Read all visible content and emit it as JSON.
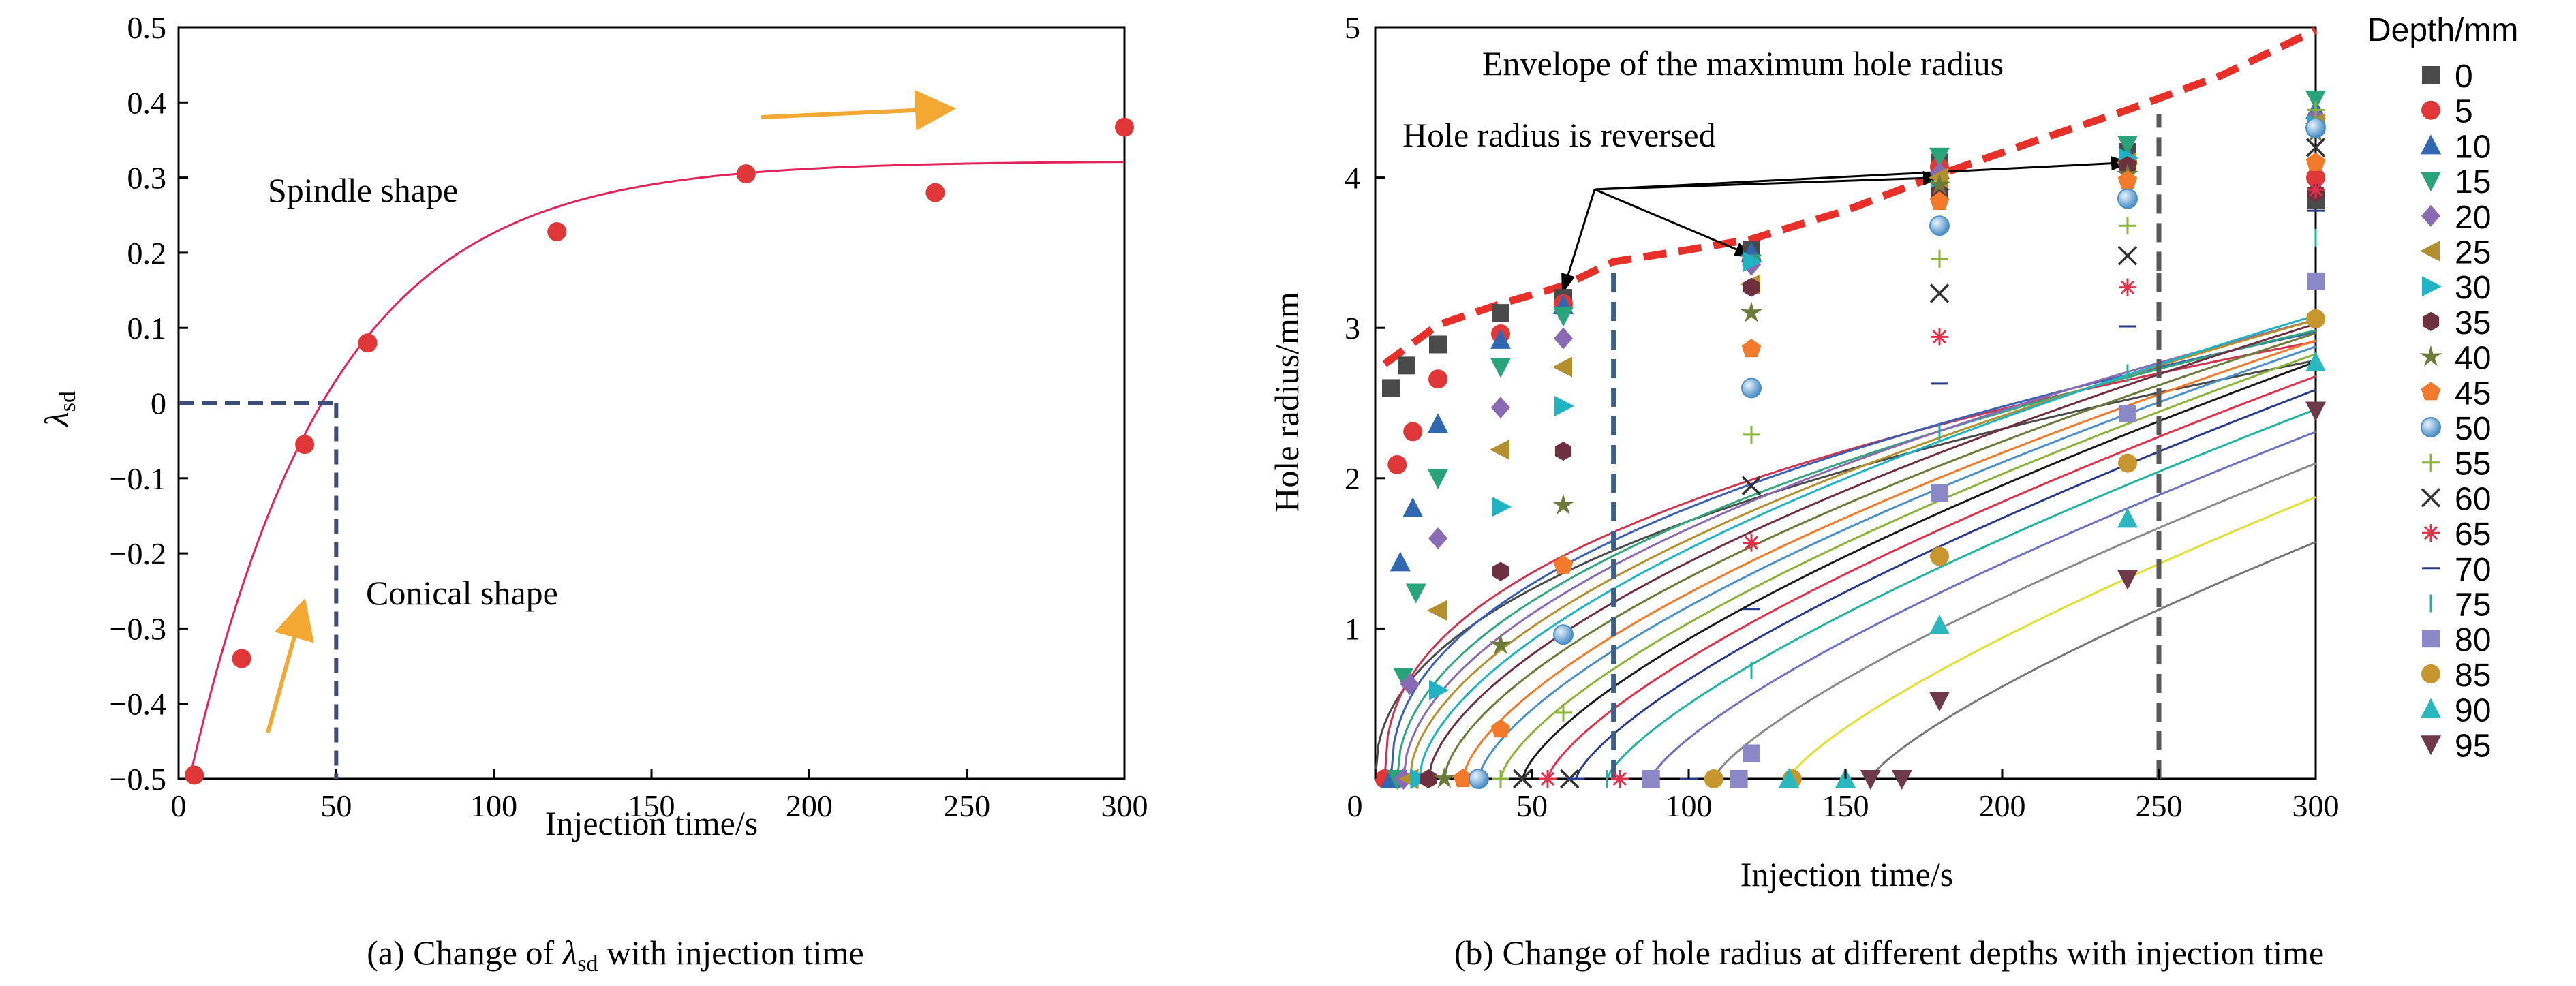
{
  "chart_data": [
    {
      "type": "scatter",
      "title": "",
      "caption_prefix": "(a) Change of ",
      "caption_symbol": "λ",
      "caption_subscript": "sd",
      "caption_suffix": " with injection time",
      "xlabel": "Injection time/s",
      "ylabel_symbol": "λ",
      "ylabel_subscript": "sd",
      "xlim": [
        0,
        300
      ],
      "ylim": [
        -0.5,
        0.5
      ],
      "xticks": [
        0,
        50,
        100,
        150,
        200,
        250,
        300
      ],
      "yticks": [
        0.5,
        0.4,
        0.3,
        0.2,
        0.1,
        0,
        -0.1,
        -0.2,
        -0.3,
        -0.4,
        -0.5
      ],
      "ytick_labels": [
        "0.5",
        "0.4",
        "0.3",
        "0.2",
        "0.1",
        "0",
        "−0.1",
        "−0.2",
        "−0.3",
        "−0.4",
        "−0.5"
      ],
      "points": [
        {
          "x": 5,
          "y": -0.495
        },
        {
          "x": 20,
          "y": -0.34
        },
        {
          "x": 40,
          "y": -0.055
        },
        {
          "x": 60,
          "y": 0.08
        },
        {
          "x": 120,
          "y": 0.228
        },
        {
          "x": 180,
          "y": 0.305
        },
        {
          "x": 240,
          "y": 0.28
        },
        {
          "x": 300,
          "y": 0.367
        }
      ],
      "fit_curve": {
        "a": 0.322,
        "b": 0.888,
        "k": 0.0223
      },
      "reference_point": {
        "x": 50,
        "y": 0
      },
      "annotations": {
        "spindle": "Spindle shape",
        "conical": "Conical shape"
      },
      "colors": {
        "points": "#e03838",
        "curve": "#e0245a",
        "dash": "#3c4d78",
        "arrow": "#f2a833"
      }
    },
    {
      "type": "line",
      "title": "",
      "caption": "(b) Change of hole radius at different depths with injection time",
      "xlabel": "Injection time/s",
      "ylabel": "Hole radius/mm",
      "xlim": [
        0,
        300
      ],
      "ylim": [
        0,
        5
      ],
      "xticks": [
        0,
        50,
        100,
        150,
        200,
        250,
        300
      ],
      "yticks": [
        1,
        2,
        3,
        4,
        5
      ],
      "legend_title": "Depth/mm",
      "legend_position": "right",
      "annotations": {
        "envelope": "Envelope of the maximum hole radius",
        "reversed": "Hole radius is reversed"
      },
      "vertical_refs": [
        {
          "x": 76,
          "color": "#3d5f86"
        },
        {
          "x": 250,
          "color": "#5a5a5a"
        }
      ],
      "envelope": {
        "x": [
          3,
          20,
          40,
          60,
          76,
          100,
          120,
          150,
          180,
          210,
          240,
          270,
          300
        ],
        "y": [
          2.76,
          3.02,
          3.16,
          3.28,
          3.44,
          3.52,
          3.59,
          3.78,
          4.02,
          4.24,
          4.45,
          4.68,
          4.98
        ],
        "color": "#e8302a"
      },
      "series": [
        {
          "name": "0",
          "marker": "square",
          "color": "#4a4a4a",
          "curve": "#4a4a4a",
          "t0": 0,
          "A": 0.225,
          "m": 0.441,
          "points": [
            [
              5,
              2.6
            ],
            [
              10,
              2.75
            ],
            [
              20,
              2.89
            ],
            [
              40,
              3.1
            ],
            [
              60,
              3.2
            ],
            [
              120,
              3.52
            ],
            [
              180,
              4.1
            ],
            [
              240,
              4.17
            ],
            [
              300,
              3.85
            ]
          ]
        },
        {
          "name": "5",
          "marker": "circle",
          "color": "#e03838",
          "curve": "#cf3550",
          "t0": 3,
          "A": 0.285,
          "m": 0.408,
          "points": [
            [
              3,
              0
            ],
            [
              7,
              2.09
            ],
            [
              12,
              2.31
            ],
            [
              20,
              2.66
            ],
            [
              40,
              2.96
            ],
            [
              60,
              3.16
            ],
            [
              120,
              3.45
            ],
            [
              180,
              4.07
            ],
            [
              240,
              4.1
            ],
            [
              300,
              4.0
            ]
          ]
        },
        {
          "name": "10",
          "marker": "triangle-up",
          "color": "#2f67b1",
          "curve": "#3a5fb3",
          "t0": 5,
          "A": 0.242,
          "m": 0.441,
          "points": [
            [
              5,
              0
            ],
            [
              8,
              1.44
            ],
            [
              12,
              1.8
            ],
            [
              20,
              2.36
            ],
            [
              40,
              2.92
            ],
            [
              60,
              3.15
            ],
            [
              120,
              3.5
            ],
            [
              180,
              4.05
            ],
            [
              240,
              4.15
            ],
            [
              300,
              4.45
            ]
          ]
        },
        {
          "name": "15",
          "marker": "triangle-down",
          "color": "#29a37a",
          "curve": "#34a77c",
          "t0": 7,
          "A": 0.192,
          "m": 0.483,
          "points": [
            [
              7,
              0
            ],
            [
              9,
              0.68
            ],
            [
              13,
              1.24
            ],
            [
              20,
              2.0
            ],
            [
              40,
              2.74
            ],
            [
              60,
              3.08
            ],
            [
              120,
              3.43
            ],
            [
              180,
              4.14
            ],
            [
              240,
              4.22
            ],
            [
              300,
              4.52
            ]
          ]
        },
        {
          "name": "20",
          "marker": "diamond",
          "color": "#8a6bb3",
          "curve": "#8a6bb3",
          "t0": 9,
          "A": 0.158,
          "m": 0.522,
          "points": [
            [
              9,
              0
            ],
            [
              11,
              0.63
            ],
            [
              20,
              1.6
            ],
            [
              40,
              2.47
            ],
            [
              60,
              2.93
            ],
            [
              120,
              3.42
            ],
            [
              180,
              4.03
            ],
            [
              240,
              4.05
            ],
            [
              300,
              4.4
            ]
          ]
        },
        {
          "name": "25",
          "marker": "triangle-left",
          "color": "#b38f2e",
          "curve": "#b38f2e",
          "t0": 11,
          "A": 0.133,
          "m": 0.553,
          "points": [
            [
              11,
              0
            ],
            [
              20,
              1.12
            ],
            [
              40,
              2.19
            ],
            [
              60,
              2.74
            ],
            [
              120,
              3.29
            ],
            [
              180,
              4.0
            ],
            [
              240,
              4.1
            ],
            [
              300,
              4.36
            ]
          ]
        },
        {
          "name": "30",
          "marker": "triangle-right",
          "color": "#1fb3c4",
          "curve": "#1fb3c4",
          "t0": 14,
          "A": 0.114,
          "m": 0.583,
          "points": [
            [
              14,
              0
            ],
            [
              20,
              0.59
            ],
            [
              40,
              1.81
            ],
            [
              60,
              2.48
            ],
            [
              120,
              3.44
            ],
            [
              180,
              3.92
            ],
            [
              240,
              4.13
            ],
            [
              300,
              4.35
            ]
          ]
        },
        {
          "name": "35",
          "marker": "hexagon",
          "color": "#6e2f40",
          "curve": "#6e2f40",
          "t0": 17,
          "A": 0.1,
          "m": 0.604,
          "points": [
            [
              17,
              0
            ],
            [
              40,
              1.38
            ],
            [
              60,
              2.18
            ],
            [
              120,
              3.27
            ],
            [
              180,
              3.9
            ],
            [
              240,
              4.08
            ],
            [
              300,
              3.9
            ]
          ]
        },
        {
          "name": "40",
          "marker": "star",
          "color": "#6b7b3a",
          "curve": "#6b7b3a",
          "t0": 22,
          "A": 0.088,
          "m": 0.625,
          "points": [
            [
              22,
              0
            ],
            [
              40,
              0.89
            ],
            [
              60,
              1.82
            ],
            [
              120,
              3.1
            ],
            [
              180,
              3.95
            ],
            [
              240,
              4.02
            ],
            [
              300,
              4.3
            ]
          ]
        },
        {
          "name": "45",
          "marker": "pentagon",
          "color": "#f27a2a",
          "curve": "#f27a2a",
          "t0": 28,
          "A": 0.078,
          "m": 0.646,
          "points": [
            [
              28,
              0
            ],
            [
              40,
              0.33
            ],
            [
              60,
              1.42
            ],
            [
              120,
              2.86
            ],
            [
              180,
              3.84
            ],
            [
              240,
              3.98
            ],
            [
              300,
              4.1
            ]
          ]
        },
        {
          "name": "50",
          "marker": "sphere",
          "color": "#4a8fc8",
          "curve": "#4a8fc8",
          "t0": 33,
          "A": 0.07,
          "m": 0.665,
          "points": [
            [
              33,
              0
            ],
            [
              60,
              0.96
            ],
            [
              120,
              2.6
            ],
            [
              180,
              3.68
            ],
            [
              240,
              3.86
            ],
            [
              300,
              4.33
            ]
          ]
        },
        {
          "name": "55",
          "marker": "plus",
          "color": "#8ab33a",
          "curve": "#8ab33a",
          "t0": 40,
          "A": 0.063,
          "m": 0.684,
          "points": [
            [
              40,
              0
            ],
            [
              60,
              0.44
            ],
            [
              120,
              2.29
            ],
            [
              180,
              3.46
            ],
            [
              240,
              3.68
            ],
            [
              300,
              4.45
            ]
          ]
        },
        {
          "name": "60",
          "marker": "cross",
          "color": "#333333",
          "curve": "#1a1a1a",
          "t0": 47,
          "A": 0.058,
          "m": 0.699,
          "points": [
            [
              47,
              0
            ],
            [
              62,
              0
            ],
            [
              120,
              1.95
            ],
            [
              180,
              3.23
            ],
            [
              240,
              3.48
            ],
            [
              300,
              4.2
            ]
          ]
        },
        {
          "name": "65",
          "marker": "asterisk",
          "color": "#e0304a",
          "curve": "#e0304a",
          "t0": 55,
          "A": 0.053,
          "m": 0.713,
          "points": [
            [
              55,
              0
            ],
            [
              78,
              0
            ],
            [
              120,
              1.57
            ],
            [
              180,
              2.94
            ],
            [
              240,
              3.27
            ],
            [
              300,
              3.92
            ]
          ]
        },
        {
          "name": "70",
          "marker": "hline",
          "color": "#2a3a8a",
          "curve": "#2a3a8a",
          "t0": 64,
          "A": 0.049,
          "m": 0.726,
          "points": [
            [
              64,
              0
            ],
            [
              100,
              0
            ],
            [
              120,
              1.13
            ],
            [
              180,
              2.63
            ],
            [
              240,
              3.01
            ],
            [
              300,
              3.78
            ]
          ]
        },
        {
          "name": "75",
          "marker": "vline",
          "color": "#1fb3a0",
          "curve": "#1fb3a0",
          "t0": 74,
          "A": 0.045,
          "m": 0.738,
          "points": [
            [
              74,
              0
            ],
            [
              120,
              0.72
            ],
            [
              180,
              2.3
            ],
            [
              240,
              2.7
            ],
            [
              300,
              3.6
            ]
          ]
        },
        {
          "name": "80",
          "marker": "square",
          "color": "#8c88c8",
          "curve": "#7070c0",
          "t0": 88,
          "A": 0.042,
          "m": 0.748,
          "points": [
            [
              88,
              0
            ],
            [
              116,
              0
            ],
            [
              120,
              0.17
            ],
            [
              180,
              1.9
            ],
            [
              240,
              2.43
            ],
            [
              300,
              3.31
            ]
          ]
        },
        {
          "name": "85",
          "marker": "circle",
          "color": "#c8962e",
          "curve": "#8a8a8a",
          "t0": 108,
          "A": 0.039,
          "m": 0.758,
          "points": [
            [
              108,
              0
            ],
            [
              133,
              0
            ],
            [
              180,
              1.48
            ],
            [
              240,
              2.1
            ],
            [
              300,
              3.06
            ]
          ]
        },
        {
          "name": "90",
          "marker": "triangle-up",
          "color": "#2ab8c0",
          "curve": "#e0e030",
          "t0": 132,
          "A": 0.037,
          "m": 0.766,
          "points": [
            [
              132,
              0
            ],
            [
              150,
              0
            ],
            [
              180,
              1.02
            ],
            [
              240,
              1.73
            ],
            [
              300,
              2.77
            ]
          ]
        },
        {
          "name": "95",
          "marker": "triangle-down",
          "color": "#6e3a4a",
          "curve": "#777777",
          "t0": 158,
          "A": 0.034,
          "m": 0.774,
          "points": [
            [
              158,
              0
            ],
            [
              168,
              0
            ],
            [
              180,
              0.52
            ],
            [
              240,
              1.33
            ],
            [
              300,
              2.45
            ]
          ]
        }
      ]
    }
  ]
}
